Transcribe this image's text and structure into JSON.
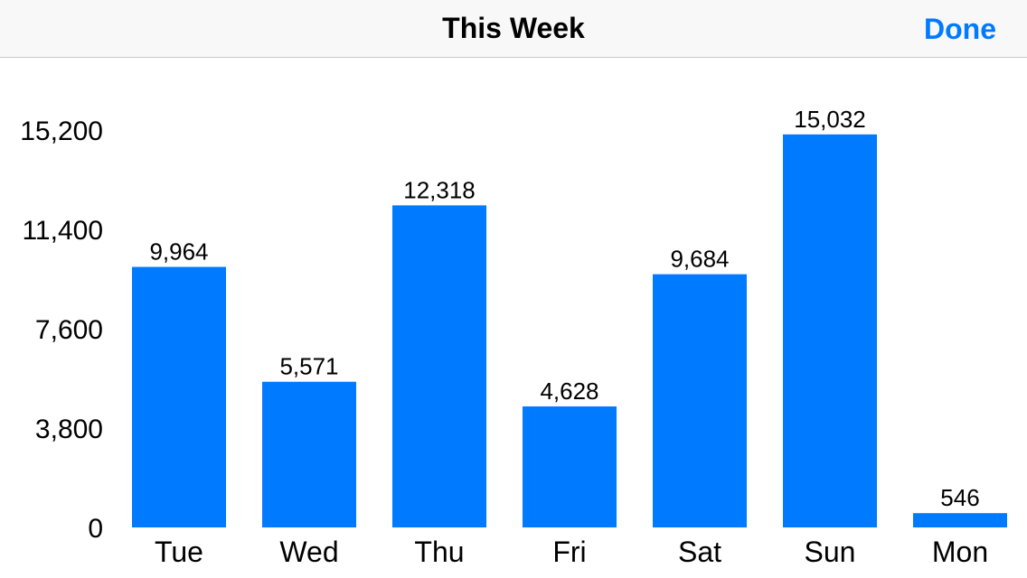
{
  "navbar": {
    "title": "This Week",
    "done_label": "Done"
  },
  "colors": {
    "accent": "#007aff",
    "bar": "#007aff",
    "navbar_bg": "#f8f8f8"
  },
  "chart_data": {
    "type": "bar",
    "categories": [
      "Tue",
      "Wed",
      "Thu",
      "Fri",
      "Sat",
      "Sun",
      "Mon"
    ],
    "values": [
      9964,
      5571,
      12318,
      4628,
      9684,
      15032,
      546
    ],
    "value_labels": [
      "9,964",
      "5,571",
      "12,318",
      "4,628",
      "9,684",
      "15,032",
      "546"
    ],
    "yticks": [
      0,
      3800,
      7600,
      11400,
      15200
    ],
    "ytick_labels": [
      "0",
      "3,800",
      "7,600",
      "11,400",
      "15,200"
    ],
    "ylim": [
      0,
      15200
    ],
    "grid": false
  }
}
